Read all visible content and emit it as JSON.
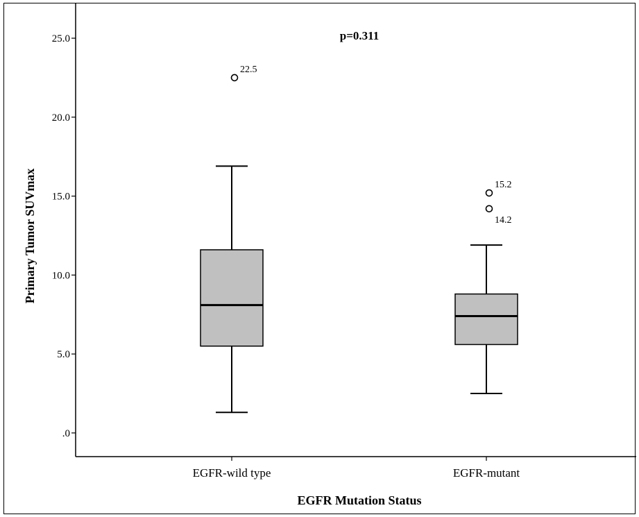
{
  "chart_data": {
    "type": "box",
    "annotation": "p=0.311",
    "xlabel": "EGFR Mutation Status",
    "ylabel": "Primary Tumor SUVmax",
    "ylim": [
      -1.5,
      27.2
    ],
    "yticks": [
      0,
      5,
      10,
      15,
      20,
      25
    ],
    "ytick_labels": [
      ".0",
      "5.0",
      "10.0",
      "15.0",
      "20.0",
      "25.0"
    ],
    "grid": false,
    "categories": [
      "EGFR-wild type",
      "EGFR-mutant"
    ],
    "boxes": [
      {
        "category": "EGFR-wild type",
        "whisker_low": 1.3,
        "q1": 5.5,
        "median": 8.1,
        "q3": 11.6,
        "whisker_high": 16.9,
        "outliers": [
          {
            "value": 22.5,
            "label": "22.5"
          }
        ]
      },
      {
        "category": "EGFR-mutant",
        "whisker_low": 2.5,
        "q1": 5.6,
        "median": 7.4,
        "q3": 8.8,
        "whisker_high": 11.9,
        "outliers": [
          {
            "value": 15.2,
            "label": "15.2"
          },
          {
            "value": 14.2,
            "label": "14.2"
          }
        ]
      }
    ],
    "colors": {
      "box_fill": "#c0c0c0",
      "stroke": "#000000"
    }
  }
}
